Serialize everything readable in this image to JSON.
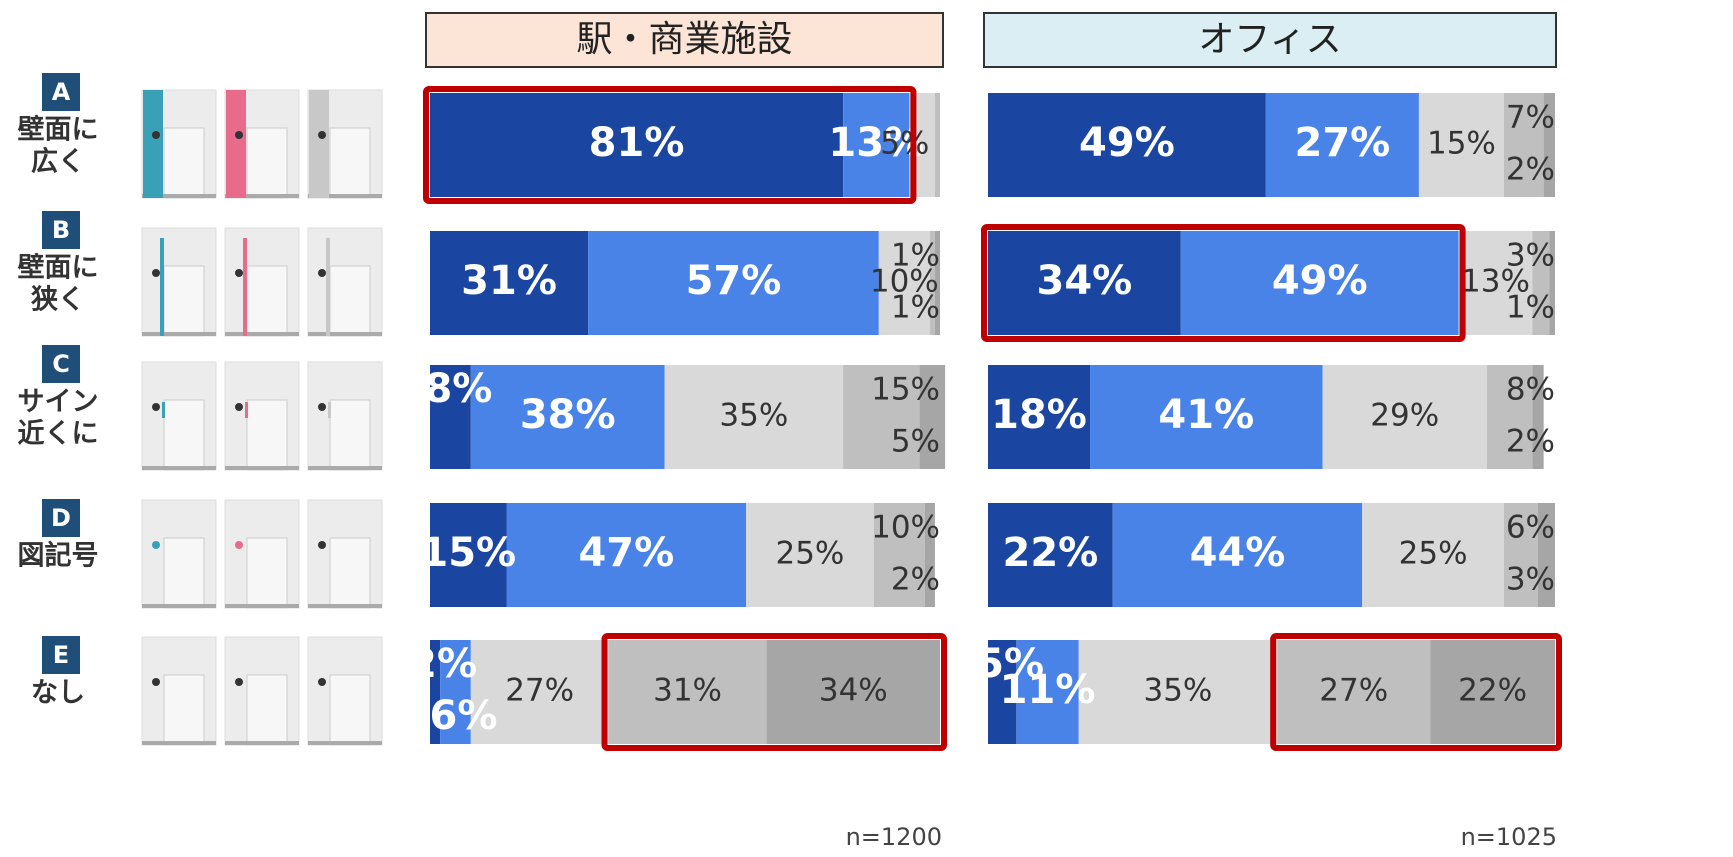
{
  "rows": [
    {
      "letter": "A",
      "label": [
        "壁面に",
        "広く"
      ]
    },
    {
      "letter": "B",
      "label": [
        "壁面に",
        "狭く"
      ]
    },
    {
      "letter": "C",
      "label": [
        "サイン",
        "近くに"
      ]
    },
    {
      "letter": "D",
      "label": [
        "図記号"
      ]
    },
    {
      "letter": "E",
      "label": [
        "なし"
      ]
    }
  ],
  "chart_data": [
    {
      "type": "stacked-bar",
      "orientation": "horizontal",
      "title": "駅・商業施設",
      "note": "n=1200",
      "categories": [
        "A",
        "B",
        "C",
        "D",
        "E"
      ],
      "xlim": [
        0,
        100
      ],
      "series": [
        {
          "color": "#1a45a0",
          "values": [
            81,
            31,
            8,
            15,
            2
          ],
          "value_labels": [
            "81%",
            "31%",
            "8%",
            "15%",
            "2%"
          ]
        },
        {
          "color": "#4a83e8",
          "values": [
            13,
            57,
            38,
            47,
            6
          ],
          "value_labels": [
            "13%",
            "57%",
            "38%",
            "47%",
            "6%"
          ]
        },
        {
          "color": "#d9d9d9",
          "values": [
            5,
            10,
            35,
            25,
            27
          ],
          "value_labels": [
            "5%",
            "10%",
            "35%",
            "25%",
            "27%"
          ]
        },
        {
          "color": "#bfbfbf",
          "values": [
            1,
            1,
            15,
            10,
            31
          ],
          "value_labels": [
            null,
            "1%",
            "15%",
            "10%",
            "31%"
          ]
        },
        {
          "color": "#a6a6a6",
          "values": [
            0,
            1,
            5,
            2,
            34
          ],
          "value_labels": [
            null,
            "1%",
            "5%",
            "2%",
            "34%"
          ]
        }
      ],
      "highlights": [
        {
          "row": 0,
          "from": 0,
          "to": 1
        },
        {
          "row": 4,
          "from": 3,
          "to": 4
        }
      ]
    },
    {
      "type": "stacked-bar",
      "orientation": "horizontal",
      "title": "オフィス",
      "note": "n=1025",
      "categories": [
        "A",
        "B",
        "C",
        "D",
        "E"
      ],
      "xlim": [
        0,
        100
      ],
      "series": [
        {
          "color": "#1a45a0",
          "values": [
            49,
            34,
            18,
            22,
            5
          ],
          "value_labels": [
            "49%",
            "34%",
            "18%",
            "22%",
            "5%"
          ]
        },
        {
          "color": "#4a83e8",
          "values": [
            27,
            49,
            41,
            44,
            11
          ],
          "value_labels": [
            "27%",
            "49%",
            "41%",
            "44%",
            "11%"
          ]
        },
        {
          "color": "#d9d9d9",
          "values": [
            15,
            13,
            29,
            25,
            35
          ],
          "value_labels": [
            "15%",
            "13%",
            "29%",
            "25%",
            "35%"
          ]
        },
        {
          "color": "#bfbfbf",
          "values": [
            7,
            3,
            8,
            6,
            27
          ],
          "value_labels": [
            "7%",
            "3%",
            "8%",
            "6%",
            "27%"
          ]
        },
        {
          "color": "#a6a6a6",
          "values": [
            2,
            1,
            2,
            3,
            22
          ],
          "value_labels": [
            "2%",
            "1%",
            "2%",
            "3%",
            "22%"
          ]
        }
      ],
      "highlights": [
        {
          "row": 1,
          "from": 0,
          "to": 1
        },
        {
          "row": 4,
          "from": 3,
          "to": 4
        }
      ]
    }
  ]
}
